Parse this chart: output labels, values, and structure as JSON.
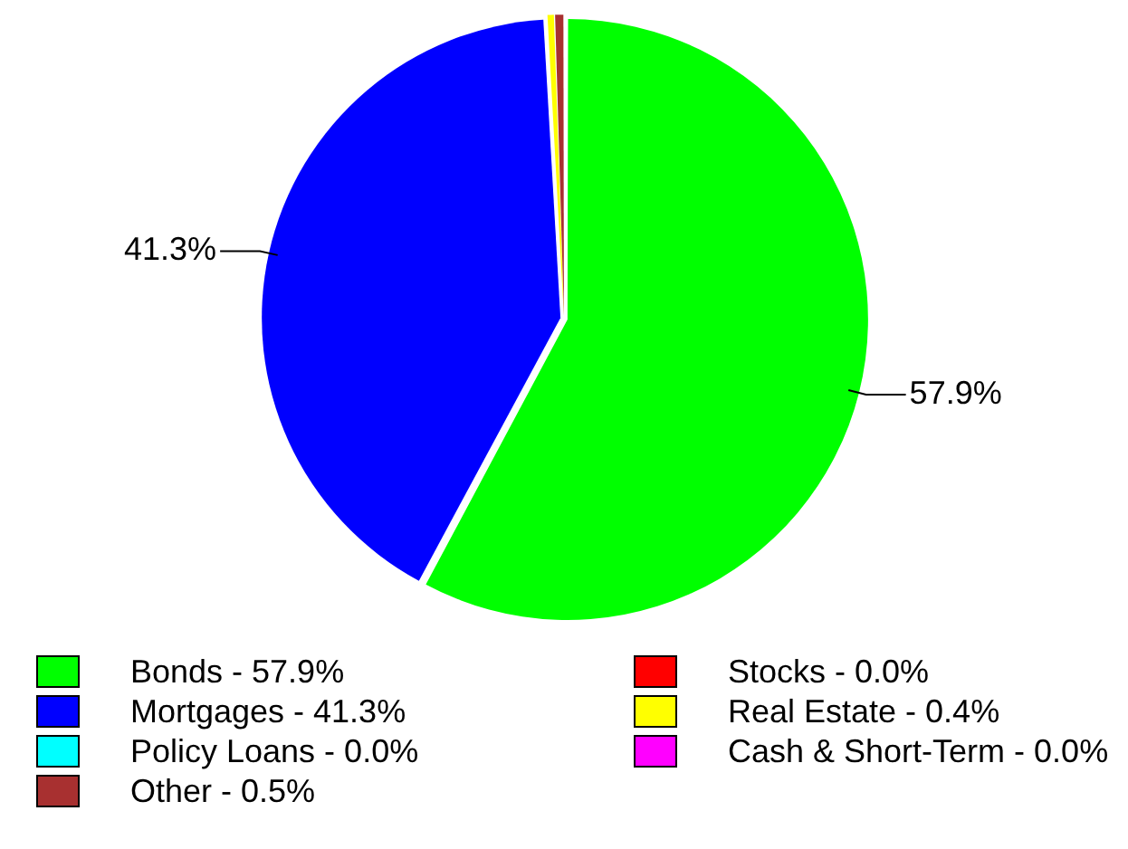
{
  "chart_data": {
    "type": "pie",
    "categories": [
      "Bonds - 57.9%",
      "Stocks - 0.0%",
      "Mortgages - 41.3%",
      "Real Estate - 0.4%",
      "Policy Loans - 0.0%",
      "Cash & Short-Term - 0.0%",
      "Other - 0.5%"
    ],
    "values": [
      57.9,
      0.0,
      41.3,
      0.4,
      0.0,
      0.0,
      0.5
    ],
    "colors": [
      "#00ff00",
      "#ff0000",
      "#0000ff",
      "#ffff00",
      "#00ffff",
      "#ff00ff",
      "#a83030"
    ],
    "value_labels": [
      "57.9%",
      null,
      "41.3%",
      null,
      null,
      null,
      null
    ],
    "legend": "bottom"
  }
}
